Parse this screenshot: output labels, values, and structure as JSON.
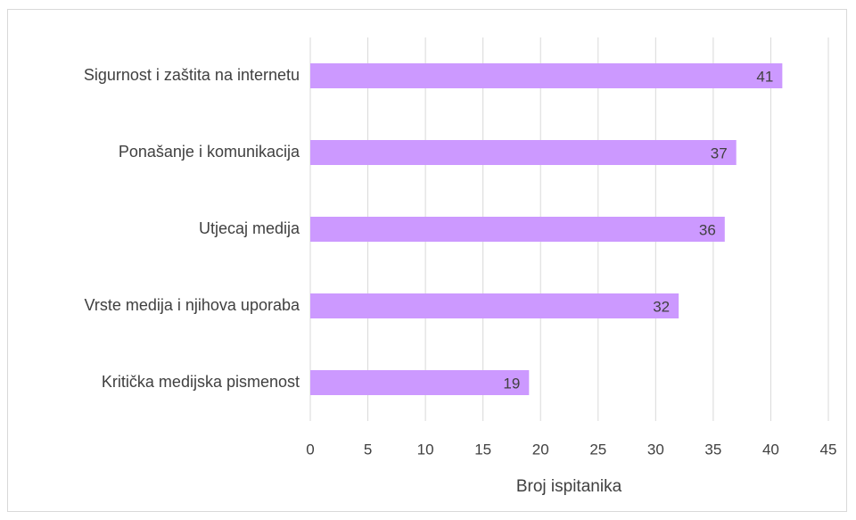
{
  "chart_data": {
    "type": "hbar",
    "x_label": "Broj ispitanika",
    "categories": [
      "Sigurnost i zaštita na internetu",
      "Ponašanje i komunikacija",
      "Utjecaj medija",
      "Vrste medija i njihova uporaba",
      "Kritička medijska pismenost"
    ],
    "values": [
      41,
      37,
      36,
      32,
      19
    ],
    "color": "#cc99ff",
    "xlim": [
      0,
      45
    ],
    "xticks": [
      0,
      5,
      10,
      15,
      20,
      25,
      30,
      35,
      40,
      45
    ],
    "grid": true
  }
}
